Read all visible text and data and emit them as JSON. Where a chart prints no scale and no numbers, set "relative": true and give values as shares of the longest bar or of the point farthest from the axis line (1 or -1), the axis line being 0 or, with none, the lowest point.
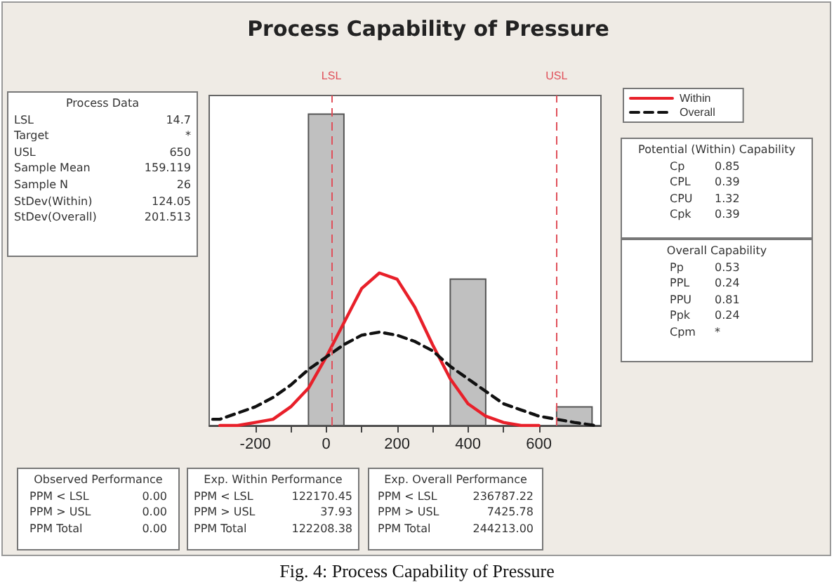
{
  "chart_data": {
    "type": "histogram",
    "title": "Process Capability of Pressure",
    "relative": true,
    "bins": [
      -50,
      50,
      150,
      250,
      350,
      450,
      550,
      650,
      750
    ],
    "xlim": [
      -330,
      775
    ],
    "xticks": [
      -200,
      {
        "value": -100,
        "label": null
      },
      0,
      {
        "value": 100,
        "label": null
      },
      200,
      {
        "value": 300,
        "label": null
      },
      400,
      {
        "value": 500,
        "label": null
      },
      600
    ],
    "series": [
      {
        "color": "#c0c0c0",
        "values": [
          1,
          0,
          0,
          0,
          0.47,
          0,
          0,
          0.06
        ]
      },
      {
        "type": "line",
        "name": "Within",
        "color": "#e8202a",
        "line_style": "solid",
        "x": [
          -300,
          -250,
          -200,
          -150,
          -100,
          -50,
          0,
          50,
          100,
          150,
          200,
          250,
          300,
          350,
          400,
          450,
          500,
          550,
          600
        ],
        "values": [
          0.0,
          0.0,
          0.01,
          0.02,
          0.06,
          0.12,
          0.22,
          0.33,
          0.44,
          0.49,
          0.47,
          0.38,
          0.26,
          0.15,
          0.07,
          0.03,
          0.01,
          0.0,
          0.0
        ]
      },
      {
        "type": "line",
        "name": "Overall",
        "color": "#111111",
        "line_style": "dashed",
        "x": [
          -320,
          -300,
          -250,
          -200,
          -150,
          -100,
          -50,
          0,
          50,
          100,
          150,
          200,
          250,
          300,
          350,
          400,
          450,
          500,
          550,
          600,
          650,
          700,
          760
        ],
        "values": [
          0.02,
          0.02,
          0.04,
          0.06,
          0.09,
          0.13,
          0.18,
          0.22,
          0.26,
          0.29,
          0.3,
          0.29,
          0.27,
          0.24,
          0.19,
          0.15,
          0.11,
          0.07,
          0.05,
          0.03,
          0.02,
          0.01,
          0.0
        ]
      }
    ],
    "ref_lines": [
      {
        "axis": "x",
        "value": 14.7,
        "label": "LSL",
        "color": "#e0505a",
        "line_style": "dashed"
      },
      {
        "axis": "x",
        "value": 650,
        "label": "USL",
        "color": "#e0505a",
        "line_style": "dashed"
      }
    ],
    "legend": "top right",
    "marker": "none",
    "grid": false,
    "annotations": [
      "Process Data\nLSL\t14.7\nTarget\t*\nUSL\t650\nSample Mean\t159.119\nSample N\t26\nStDev(Within)\t124.05\nStDev(Overall)\t201.513",
      "Potential (Within) Capability\nCp\t0.85\nCPL\t0.39\nCPU\t1.32\nCpk\t0.39",
      "Overall Capability\nPp\t0.53\nPPL\t0.24\nPPU\t0.81\nPpk\t0.24\nCpm\t*",
      "Observed Performance\nPPM < LSL\t0.00\nPPM > USL\t0.00\nPPM Total\t0.00",
      "Exp. Within Performance\nPPM < LSL\t122170.45\nPPM > USL\t37.93\nPPM Total\t122208.38",
      "Exp. Overall Performance\nPPM < LSL\t236787.22\nPPM > USL\t7425.78\nPPM Total\t244213.00",
      "Fig. 4: Process Capability of Pressure"
    ]
  }
}
